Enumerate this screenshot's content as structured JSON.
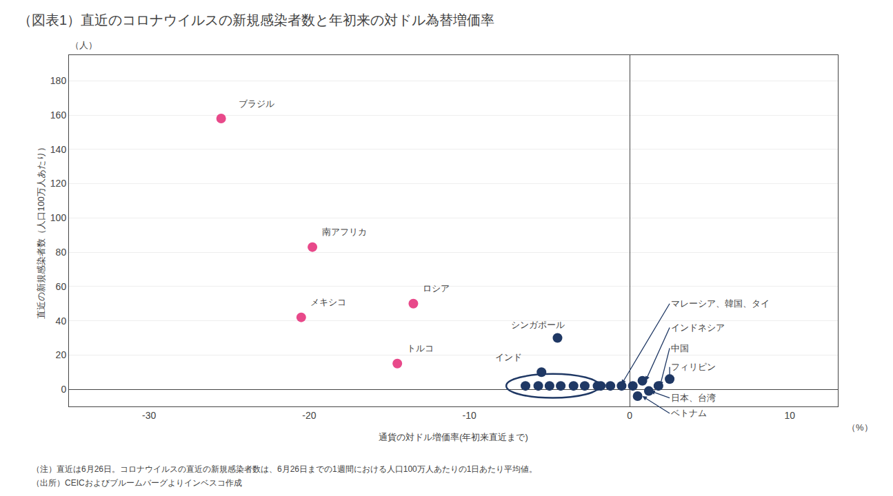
{
  "chart_data": {
    "type": "scatter",
    "title": "（図表1）直近のコロナウイルスの新規感染者数と年初来の対ドル為替増価率",
    "xlabel": "通貨の対ドル増価率(年初来直近まで)",
    "ylabel": "直近の新規感染者数（人口100万人あたり）",
    "ylabel_unit": "（人）",
    "xlabel_unit": "（%）",
    "notes": [
      "（注）直近は6月26日。コロナウイルスの直近の新規感染者数は、6月26日までの1週間における人口100万人あたりの1日あたり平均値。",
      "（出所）CEICおよびブルームバーグよりインベスコ作成"
    ],
    "xlim": [
      -35,
      13
    ],
    "ylim": [
      -10,
      195
    ],
    "xticks": [
      -30,
      -20,
      -10,
      0,
      10
    ],
    "yticks": [
      0,
      20,
      40,
      60,
      80,
      100,
      120,
      140,
      160,
      180
    ],
    "grid": "y",
    "series": [
      {
        "color": "#E8498A",
        "x": [
          -25.5,
          -19.8,
          -20.5,
          -13.5,
          -14.5
        ],
        "y": [
          158,
          83,
          42,
          50,
          15
        ]
      },
      {
        "color": "#1F3864",
        "x": [
          -6.5,
          -5.7,
          -5.0,
          -4.3,
          -3.5,
          -2.8,
          -2.0,
          -1.2,
          -0.5,
          0.2,
          -5.5,
          -4.5,
          -1.8,
          0.8,
          1.8,
          2.5,
          1.2,
          0.5
        ],
        "y": [
          2,
          2,
          2,
          2,
          2,
          2,
          2,
          2,
          2,
          2,
          10,
          30,
          2,
          5,
          2,
          6,
          -1,
          -4
        ]
      }
    ],
    "annotations": [
      {
        "text": "ブラジル",
        "x": -24.5,
        "y": 163
      },
      {
        "text": "南アフリカ",
        "x": -19.3,
        "y": 88
      },
      {
        "text": "メキシコ",
        "x": -20.0,
        "y": 47
      },
      {
        "text": "ロシア",
        "x": -13.0,
        "y": 55
      },
      {
        "text": "トルコ",
        "x": -14.0,
        "y": 20
      },
      {
        "text": "インド",
        "x": -8.5,
        "y": 15
      },
      {
        "text": "シンガポール",
        "x": -7.5,
        "y": 34
      },
      {
        "text": "マレーシア、韓国、タイ",
        "x": 2.5,
        "y": 50,
        "arrow_x": -0.5,
        "arrow_y": 3
      },
      {
        "text": "インドネシア",
        "x": 2.5,
        "y": 36,
        "arrow_x": 1.0,
        "arrow_y": 5
      },
      {
        "text": "中国",
        "x": 2.5,
        "y": 24,
        "arrow_x": 1.9,
        "arrow_y": 2
      },
      {
        "text": "フィリピン",
        "x": 2.5,
        "y": 13,
        "arrow_x": 2.5,
        "arrow_y": 6
      },
      {
        "text": "日本、台湾",
        "x": 2.5,
        "y": -5,
        "arrow_x": 1.3,
        "arrow_y": -1
      },
      {
        "text": "ベトナム",
        "x": 2.5,
        "y": -14,
        "arrow_x": 0.8,
        "arrow_y": -4
      }
    ],
    "ellipse": {
      "x": -4.8,
      "y": 2.0,
      "width": 5.8,
      "height": 14
    }
  }
}
